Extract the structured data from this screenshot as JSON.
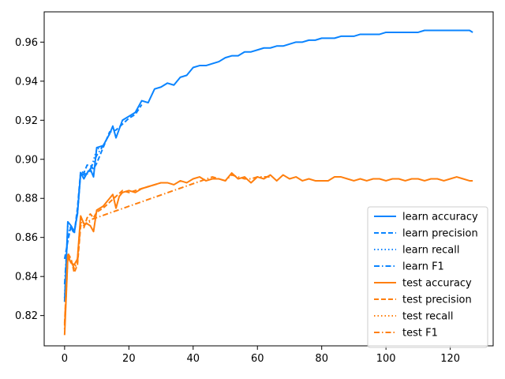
{
  "chart_data": {
    "type": "line",
    "title": "",
    "xlabel": "",
    "ylabel": "",
    "xlim": [
      -6.35,
      133.35
    ],
    "ylim": [
      0.8045,
      0.9755
    ],
    "x_ticks": [
      0,
      20,
      40,
      60,
      80,
      100,
      120
    ],
    "y_ticks": [
      0.82,
      0.84,
      0.86,
      0.88,
      0.9,
      0.92,
      0.94,
      0.96
    ],
    "y_tick_labels": [
      "0.82",
      "0.84",
      "0.86",
      "0.88",
      "0.90",
      "0.92",
      "0.94",
      "0.96"
    ],
    "grid": false,
    "legend_position": "lower-right",
    "colors": {
      "learn": "#1f77b4",
      "learn_bright": "#0a84ff",
      "test": "#ff7f0e"
    },
    "series": [
      {
        "name": "learn accuracy",
        "style": "solid",
        "color_key": "learn_bright",
        "x": [
          0,
          1,
          2,
          3,
          4,
          5,
          6,
          7,
          8,
          9,
          10,
          12,
          14,
          15,
          16,
          18,
          20,
          22,
          24,
          26,
          28,
          30,
          32,
          34,
          36,
          38,
          40,
          42,
          44,
          46,
          48,
          50,
          52,
          54,
          56,
          58,
          60,
          62,
          64,
          66,
          68,
          70,
          72,
          74,
          76,
          78,
          80,
          82,
          84,
          86,
          88,
          90,
          92,
          94,
          96,
          98,
          100,
          102,
          104,
          106,
          108,
          110,
          112,
          114,
          116,
          118,
          120,
          122,
          124,
          126,
          127
        ],
        "y": [
          0.827,
          0.868,
          0.866,
          0.863,
          0.872,
          0.893,
          0.89,
          0.893,
          0.895,
          0.891,
          0.906,
          0.907,
          0.913,
          0.917,
          0.911,
          0.92,
          0.922,
          0.924,
          0.93,
          0.929,
          0.936,
          0.937,
          0.939,
          0.938,
          0.942,
          0.943,
          0.947,
          0.948,
          0.948,
          0.949,
          0.95,
          0.952,
          0.953,
          0.953,
          0.955,
          0.955,
          0.956,
          0.957,
          0.957,
          0.958,
          0.958,
          0.959,
          0.96,
          0.96,
          0.961,
          0.961,
          0.962,
          0.962,
          0.962,
          0.963,
          0.963,
          0.963,
          0.964,
          0.964,
          0.964,
          0.964,
          0.965,
          0.965,
          0.965,
          0.965,
          0.965,
          0.965,
          0.966,
          0.966,
          0.966,
          0.966,
          0.966,
          0.966,
          0.966,
          0.966,
          0.965
        ]
      },
      {
        "name": "learn precision",
        "style": "dashed",
        "color_key": "learn_bright",
        "x": [
          0,
          1,
          2,
          3,
          4,
          5,
          6,
          7,
          8,
          9,
          10,
          12,
          14,
          16,
          18,
          20,
          22,
          24
        ],
        "y": [
          0.849,
          0.858,
          0.866,
          0.862,
          0.875,
          0.894,
          0.893,
          0.897,
          0.897,
          0.895,
          0.898,
          0.906,
          0.914,
          0.915,
          0.918,
          0.921,
          0.923,
          0.928
        ]
      },
      {
        "name": "learn recall",
        "style": "dotted",
        "color_key": "learn_bright",
        "x": [
          0,
          1,
          2,
          3,
          4,
          5,
          6,
          8,
          10,
          12,
          14
        ],
        "y": [
          0.829,
          0.866,
          0.865,
          0.863,
          0.872,
          0.893,
          0.891,
          0.894,
          0.905,
          0.907,
          0.913
        ]
      },
      {
        "name": "learn F1",
        "style": "dashdot",
        "color_key": "learn_bright",
        "x": [
          0,
          1,
          2,
          3,
          4,
          5,
          6,
          8,
          10,
          12
        ],
        "y": [
          0.836,
          0.862,
          0.865,
          0.862,
          0.873,
          0.893,
          0.892,
          0.895,
          0.902,
          0.907
        ]
      },
      {
        "name": "test accuracy",
        "style": "solid",
        "color_key": "test",
        "x": [
          0,
          1,
          2,
          3,
          4,
          5,
          6,
          7,
          8,
          9,
          10,
          12,
          14,
          15,
          16,
          17,
          18,
          20,
          22,
          24,
          26,
          28,
          30,
          32,
          34,
          36,
          38,
          40,
          42,
          44,
          46,
          48,
          50,
          52,
          54,
          56,
          58,
          60,
          62,
          64,
          66,
          68,
          70,
          72,
          74,
          76,
          78,
          80,
          82,
          84,
          86,
          88,
          90,
          92,
          94,
          96,
          98,
          100,
          102,
          104,
          106,
          108,
          110,
          112,
          114,
          116,
          118,
          120,
          122,
          124,
          126,
          127
        ],
        "y": [
          0.81,
          0.85,
          0.847,
          0.846,
          0.849,
          0.871,
          0.867,
          0.867,
          0.866,
          0.863,
          0.874,
          0.876,
          0.88,
          0.882,
          0.875,
          0.881,
          0.883,
          0.884,
          0.883,
          0.885,
          0.886,
          0.887,
          0.888,
          0.888,
          0.887,
          0.889,
          0.888,
          0.89,
          0.891,
          0.889,
          0.89,
          0.89,
          0.889,
          0.893,
          0.89,
          0.891,
          0.888,
          0.891,
          0.89,
          0.892,
          0.889,
          0.892,
          0.89,
          0.891,
          0.889,
          0.89,
          0.889,
          0.889,
          0.889,
          0.891,
          0.891,
          0.89,
          0.889,
          0.89,
          0.889,
          0.89,
          0.89,
          0.889,
          0.89,
          0.89,
          0.889,
          0.89,
          0.89,
          0.889,
          0.89,
          0.89,
          0.889,
          0.89,
          0.891,
          0.89,
          0.889,
          0.889
        ]
      },
      {
        "name": "test precision",
        "style": "dashed",
        "color_key": "test",
        "x": [
          0,
          1,
          2,
          3,
          4,
          5,
          6,
          7,
          8,
          9,
          10,
          12,
          14,
          16,
          18,
          20,
          22,
          24,
          26,
          28,
          30
        ],
        "y": [
          0.816,
          0.852,
          0.849,
          0.842,
          0.846,
          0.866,
          0.865,
          0.87,
          0.872,
          0.87,
          0.873,
          0.875,
          0.878,
          0.881,
          0.884,
          0.883,
          0.884,
          0.885,
          0.886,
          0.887,
          0.888
        ]
      },
      {
        "name": "test recall",
        "style": "dotted",
        "color_key": "test",
        "x": [
          0,
          1,
          2,
          3,
          4,
          5,
          6,
          8
        ],
        "y": [
          0.813,
          0.85,
          0.848,
          0.845,
          0.849,
          0.87,
          0.867,
          0.868
        ]
      },
      {
        "name": "test F1",
        "style": "dashdot",
        "color_key": "test",
        "x": [
          0,
          1,
          2,
          3,
          4,
          5,
          6,
          8,
          46,
          48,
          50,
          52,
          54,
          56,
          58,
          60,
          62,
          64
        ],
        "y": [
          0.815,
          0.851,
          0.848,
          0.844,
          0.847,
          0.868,
          0.866,
          0.869,
          0.891,
          0.89,
          0.889,
          0.892,
          0.891,
          0.89,
          0.89,
          0.891,
          0.891,
          0.891
        ]
      }
    ]
  }
}
